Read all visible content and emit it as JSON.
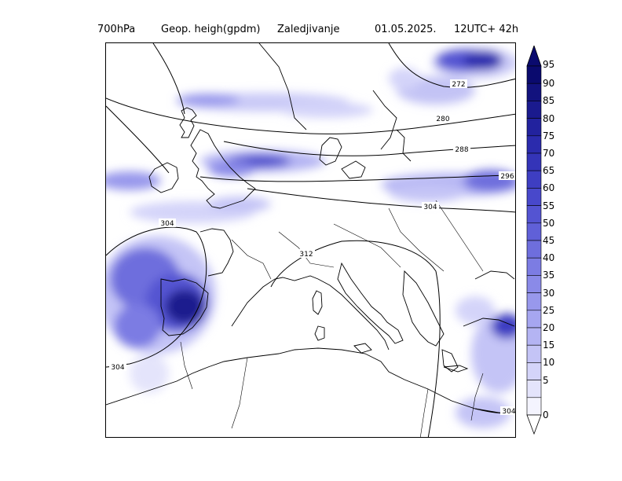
{
  "title": {
    "level": "700hPa",
    "variable": "Geop. heigh(gpdm)",
    "field": "Zaledjivanje",
    "date": "01.05.2025.",
    "time": "12UTC+ 42h"
  },
  "contour_labels": [
    "272",
    "280",
    "288",
    "296",
    "304",
    "312",
    "304",
    "304",
    "304"
  ],
  "colorbar": {
    "levels": [
      "95",
      "90",
      "85",
      "80",
      "75",
      "70",
      "65",
      "60",
      "55",
      "50",
      "45",
      "40",
      "35",
      "30",
      "25",
      "20",
      "15",
      "10",
      "5",
      "0"
    ],
    "colors": [
      "#0a0a6e",
      "#12127e",
      "#1a1a8e",
      "#22229e",
      "#2b2bad",
      "#3434b8",
      "#3e3ec2",
      "#4848cb",
      "#5454d2",
      "#6060d8",
      "#6e6edd",
      "#7c7ce3",
      "#8a8ae8",
      "#9898ec",
      "#a6a6f0",
      "#b4b4f3",
      "#c4c4f6",
      "#d4d4f9",
      "#e4e4fb",
      "#f4f4fe"
    ]
  }
}
